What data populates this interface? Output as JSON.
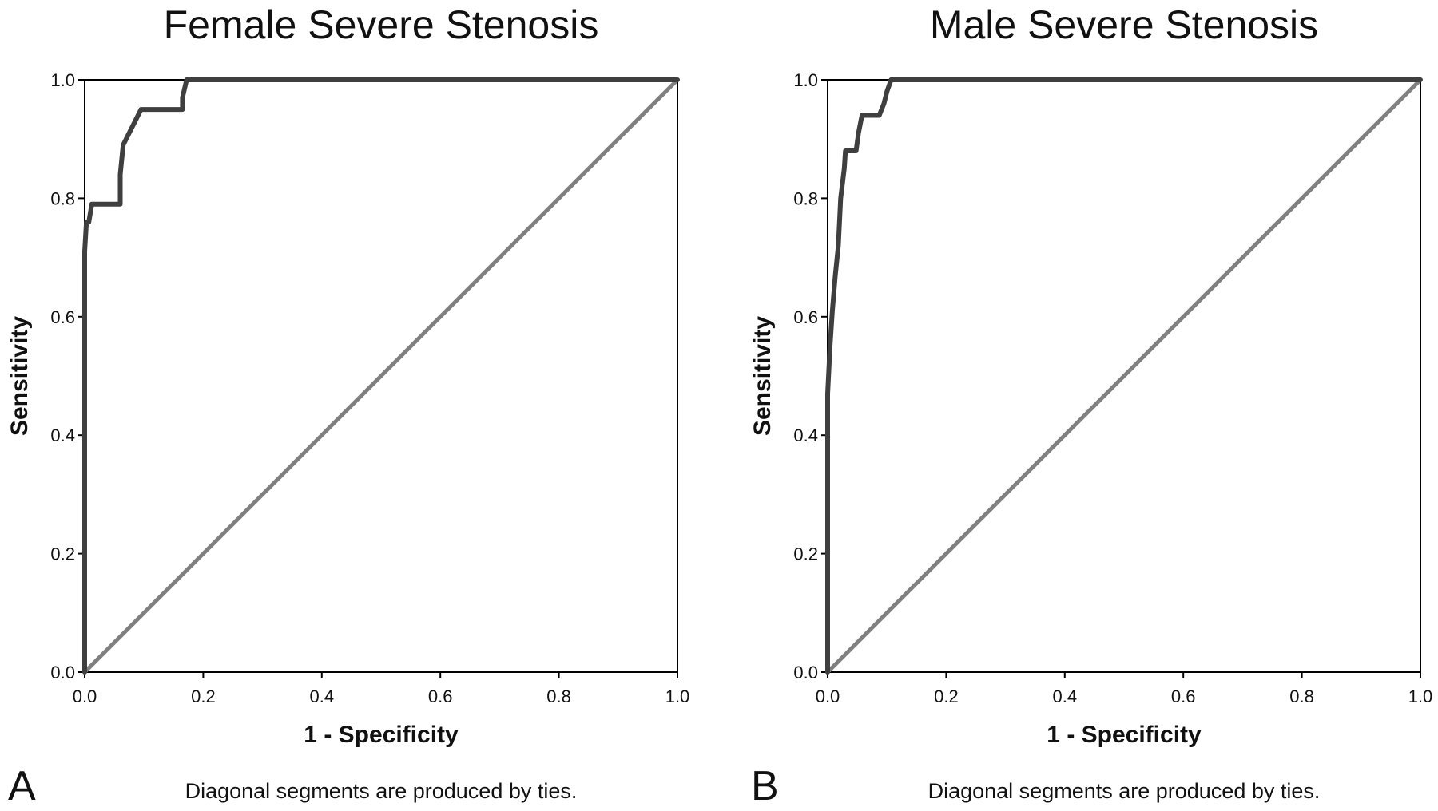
{
  "chart_data": [
    {
      "type": "line",
      "panel_label": "A",
      "title": "Female Severe Stenosis",
      "xlabel": "1 - Specificity",
      "ylabel": "Sensitivity",
      "xlim": [
        0,
        1
      ],
      "ylim": [
        0,
        1
      ],
      "xticks": [
        "0.0",
        "0.2",
        "0.4",
        "0.6",
        "0.8",
        "1.0"
      ],
      "yticks": [
        "0.0",
        "0.2",
        "0.4",
        "0.6",
        "0.8",
        "1.0"
      ],
      "footnote": "Diagonal segments are produced by ties.",
      "grid": false,
      "series": [
        {
          "color": "#3f3f3f",
          "x": [
            0,
            0,
            0.003,
            0.007,
            0.012,
            0.06,
            0.06,
            0.065,
            0.07,
            0.095,
            0.165,
            0.165,
            0.172,
            1.0
          ],
          "y": [
            0,
            0.71,
            0.76,
            0.76,
            0.79,
            0.79,
            0.84,
            0.89,
            0.9,
            0.95,
            0.95,
            0.97,
            1.0,
            1.0
          ]
        },
        {
          "color": "#808080",
          "x": [
            0,
            1
          ],
          "y": [
            0,
            1
          ]
        }
      ]
    },
    {
      "type": "line",
      "panel_label": "B",
      "title": "Male Severe Stenosis",
      "xlabel": "1 - Specificity",
      "ylabel": "Sensitivity",
      "xlim": [
        0,
        1
      ],
      "ylim": [
        0,
        1
      ],
      "xticks": [
        "0.0",
        "0.2",
        "0.4",
        "0.6",
        "0.8",
        "1.0"
      ],
      "yticks": [
        "0.0",
        "0.2",
        "0.4",
        "0.6",
        "0.8",
        "1.0"
      ],
      "footnote": "Diagonal segments are produced by ties.",
      "grid": false,
      "series": [
        {
          "color": "#3f3f3f",
          "x": [
            0,
            0,
            0.004,
            0.008,
            0.013,
            0.018,
            0.022,
            0.028,
            0.03,
            0.048,
            0.052,
            0.058,
            0.087,
            0.095,
            0.1,
            0.107,
            1.0
          ],
          "y": [
            0,
            0.47,
            0.55,
            0.61,
            0.67,
            0.72,
            0.8,
            0.85,
            0.88,
            0.88,
            0.91,
            0.94,
            0.94,
            0.96,
            0.98,
            1.0,
            1.0
          ]
        },
        {
          "color": "#808080",
          "x": [
            0,
            1
          ],
          "y": [
            0,
            1
          ]
        }
      ]
    }
  ]
}
